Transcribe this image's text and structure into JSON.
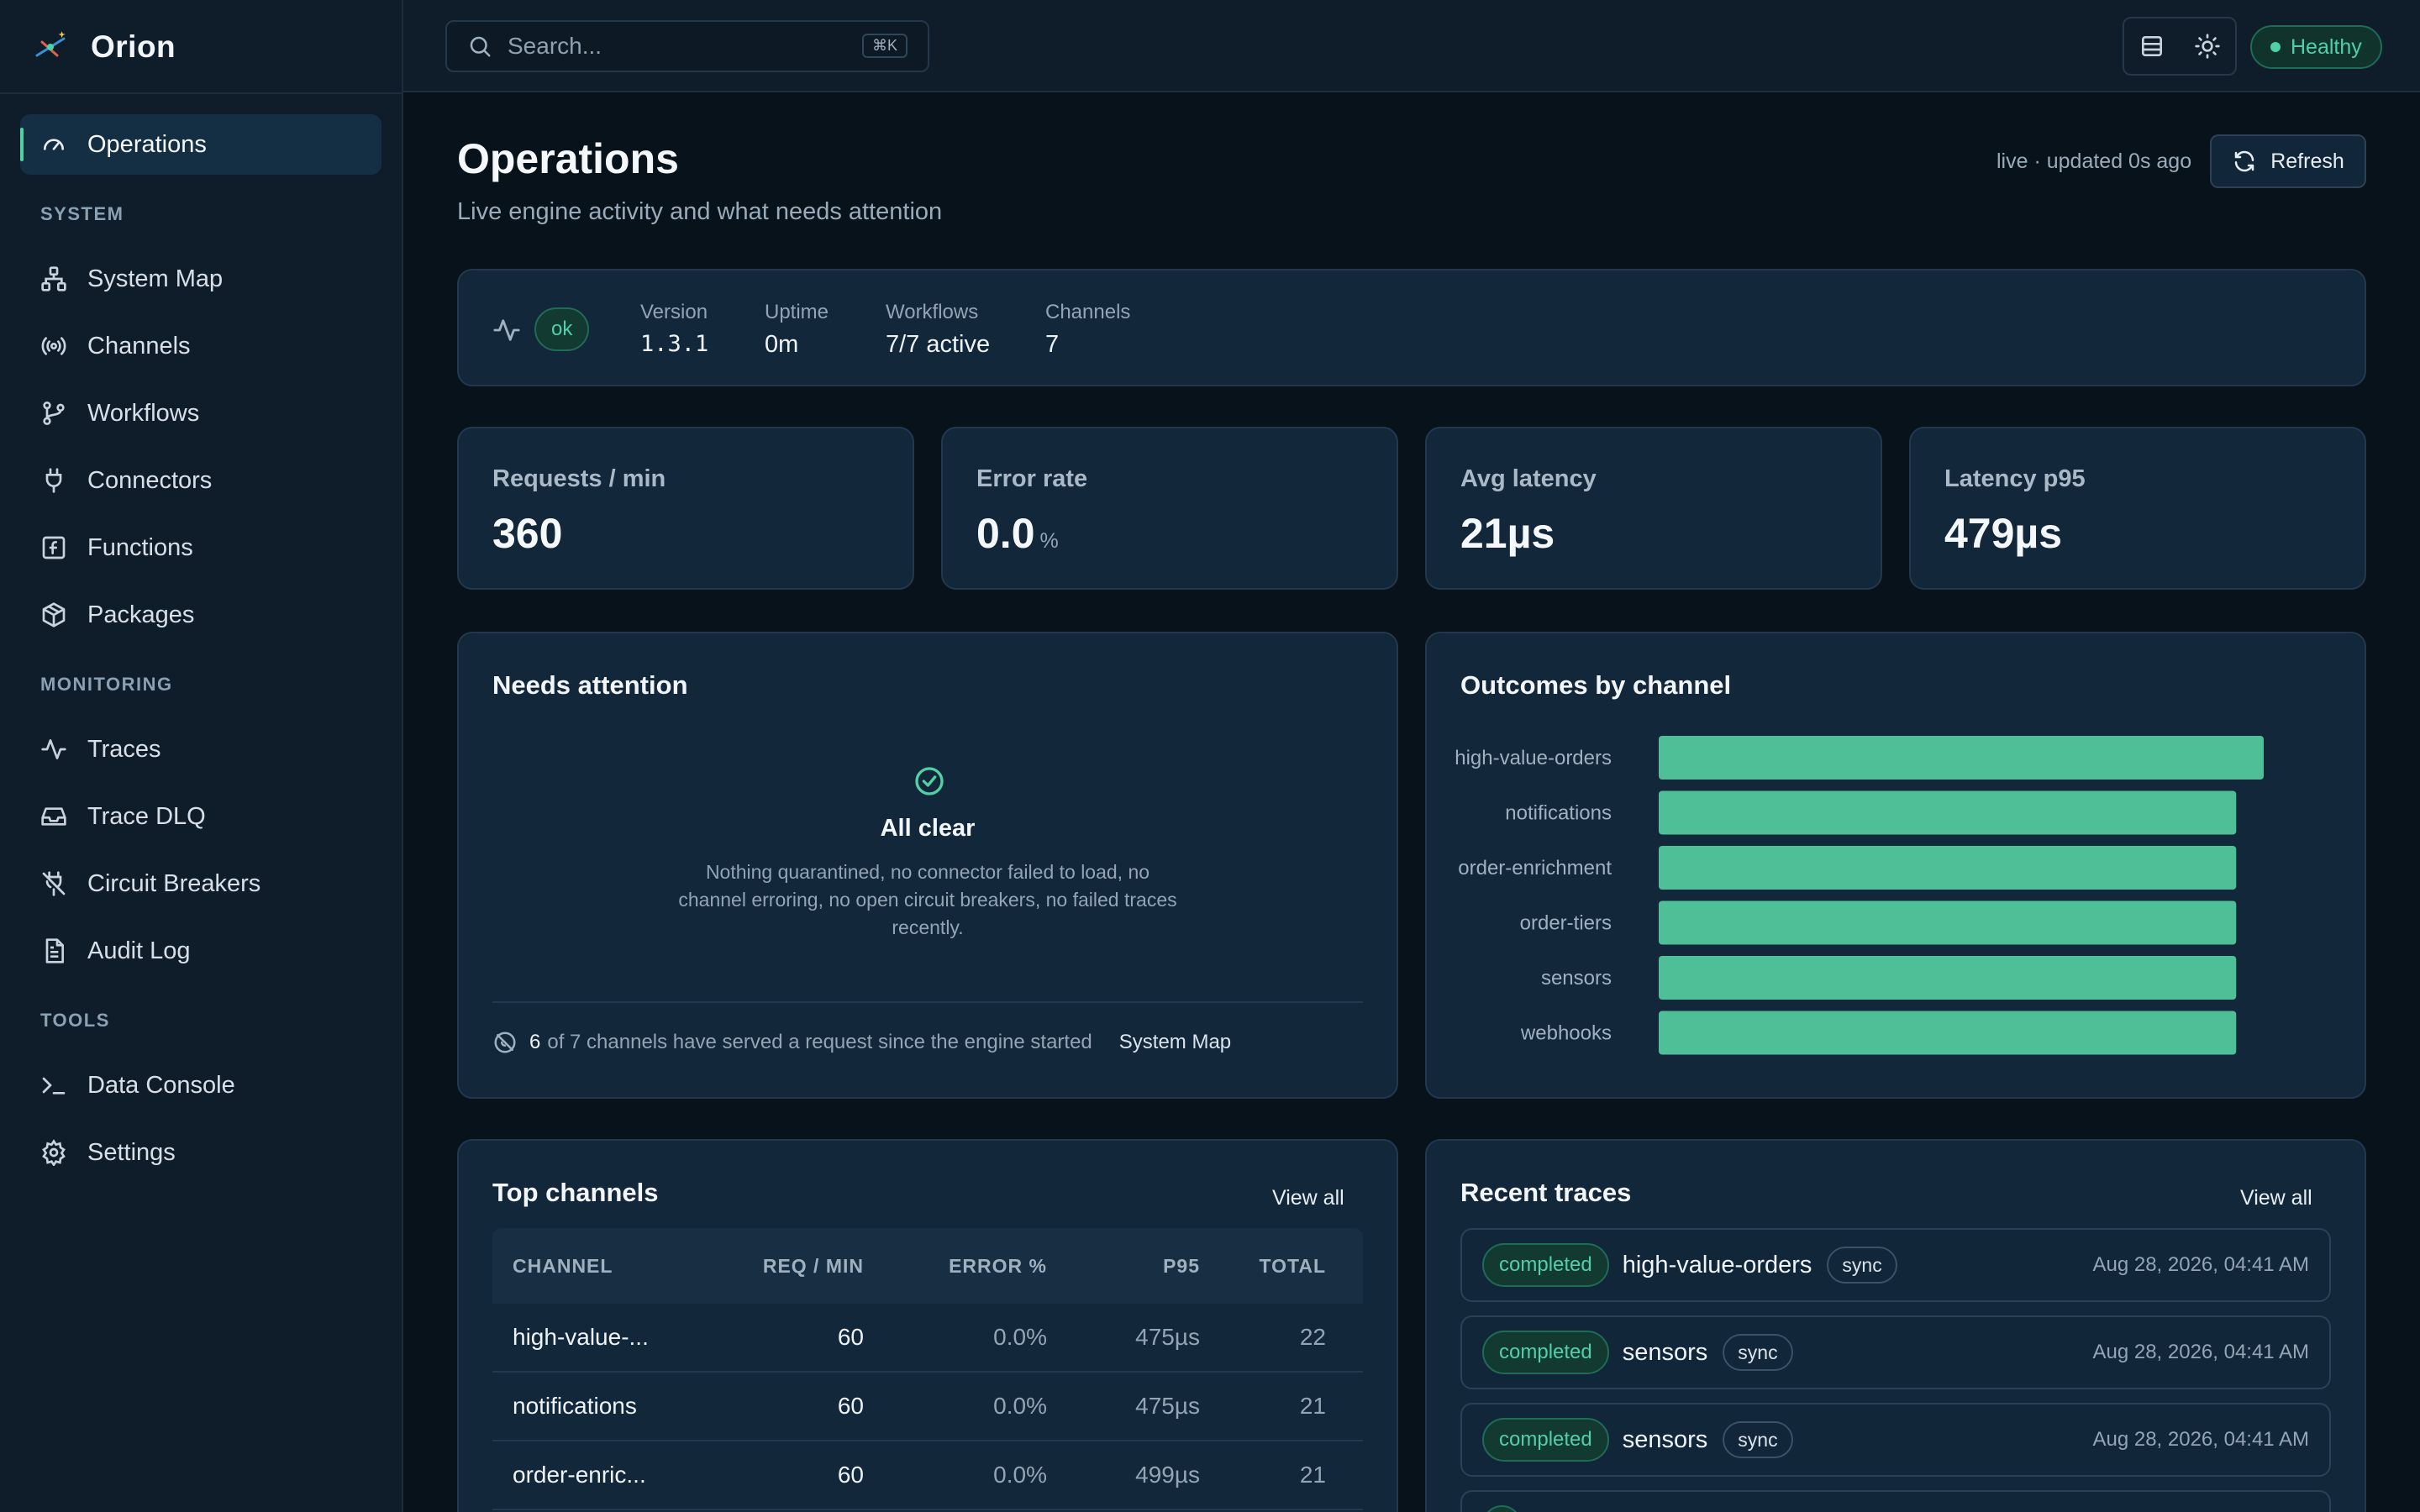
{
  "brand": {
    "name": "Orion"
  },
  "sidebar": {
    "top_item": {
      "label": "Operations",
      "icon": "gauge-icon"
    },
    "sections": [
      {
        "title": "SYSTEM",
        "items": [
          {
            "label": "System Map",
            "icon": "sitemap-icon"
          },
          {
            "label": "Channels",
            "icon": "broadcast-icon"
          },
          {
            "label": "Workflows",
            "icon": "git-branch-icon"
          },
          {
            "label": "Connectors",
            "icon": "plug-icon"
          },
          {
            "label": "Functions",
            "icon": "function-icon"
          },
          {
            "label": "Packages",
            "icon": "package-icon"
          }
        ]
      },
      {
        "title": "MONITORING",
        "items": [
          {
            "label": "Traces",
            "icon": "activity-icon"
          },
          {
            "label": "Trace DLQ",
            "icon": "inbox-icon"
          },
          {
            "label": "Circuit Breakers",
            "icon": "unplug-icon"
          },
          {
            "label": "Audit Log",
            "icon": "file-text-icon"
          }
        ]
      },
      {
        "title": "TOOLS",
        "items": [
          {
            "label": "Data Console",
            "icon": "terminal-icon"
          },
          {
            "label": "Settings",
            "icon": "gear-icon"
          }
        ]
      }
    ]
  },
  "topbar": {
    "search_placeholder": "Search...",
    "shortcut": "⌘K",
    "health_label": "Healthy"
  },
  "header": {
    "title": "Operations",
    "subtitle": "Live engine activity and what needs attention",
    "live_text": "live · updated 0s ago",
    "refresh_label": "Refresh"
  },
  "status": {
    "badge": "ok",
    "items": [
      {
        "key": "Version",
        "value": "1.3.1"
      },
      {
        "key": "Uptime",
        "value": "0m"
      },
      {
        "key": "Workflows",
        "value": "7/7 active"
      },
      {
        "key": "Channels",
        "value": "7"
      }
    ]
  },
  "kpis": [
    {
      "label": "Requests / min",
      "value": "360",
      "unit": ""
    },
    {
      "label": "Error rate",
      "value": "0.0",
      "unit": "%"
    },
    {
      "label": "Avg latency",
      "value": "21µs",
      "unit": ""
    },
    {
      "label": "Latency p95",
      "value": "479µs",
      "unit": ""
    }
  ],
  "attention": {
    "title": "Needs attention",
    "clear_title": "All clear",
    "clear_body": "Nothing quarantined, no connector failed to load, no channel erroring, no open circuit breakers, no failed traces recently.",
    "footer_count": "6",
    "footer_text": "of 7 channels have served a request since the engine started",
    "footer_link": "System Map"
  },
  "chart_data": {
    "type": "bar",
    "title": "Outcomes by channel",
    "orientation": "horizontal",
    "categories": [
      "high-value-orders",
      "notifications",
      "order-enrichment",
      "order-tiers",
      "sensors",
      "webhooks"
    ],
    "values": [
      22,
      21,
      21,
      21,
      21,
      21
    ],
    "color": "#4fbf97",
    "xlim": [
      0,
      22
    ],
    "grid": false,
    "legend": "none"
  },
  "top_channels": {
    "title": "Top channels",
    "view_all": "View all",
    "columns": [
      "CHANNEL",
      "REQ / MIN",
      "ERROR %",
      "P95",
      "TOTAL"
    ],
    "rows": [
      [
        "high-value-...",
        "60",
        "0.0%",
        "475µs",
        "22"
      ],
      [
        "notifications",
        "60",
        "0.0%",
        "475µs",
        "21"
      ],
      [
        "order-enric...",
        "60",
        "0.0%",
        "499µs",
        "21"
      ]
    ]
  },
  "recent_traces": {
    "title": "Recent traces",
    "view_all": "View all",
    "items": [
      {
        "status": "completed",
        "channel": "high-value-orders",
        "mode": "sync",
        "time": "Aug 28, 2026, 04:41 AM"
      },
      {
        "status": "completed",
        "channel": "sensors",
        "mode": "sync",
        "time": "Aug 28, 2026, 04:41 AM"
      },
      {
        "status": "completed",
        "channel": "sensors",
        "mode": "sync",
        "time": "Aug 28, 2026, 04:41 AM"
      }
    ]
  },
  "colors": {
    "accent": "#4fd1a5",
    "bar": "#4fbf97",
    "background": "#08121b",
    "card": "#13273a"
  }
}
